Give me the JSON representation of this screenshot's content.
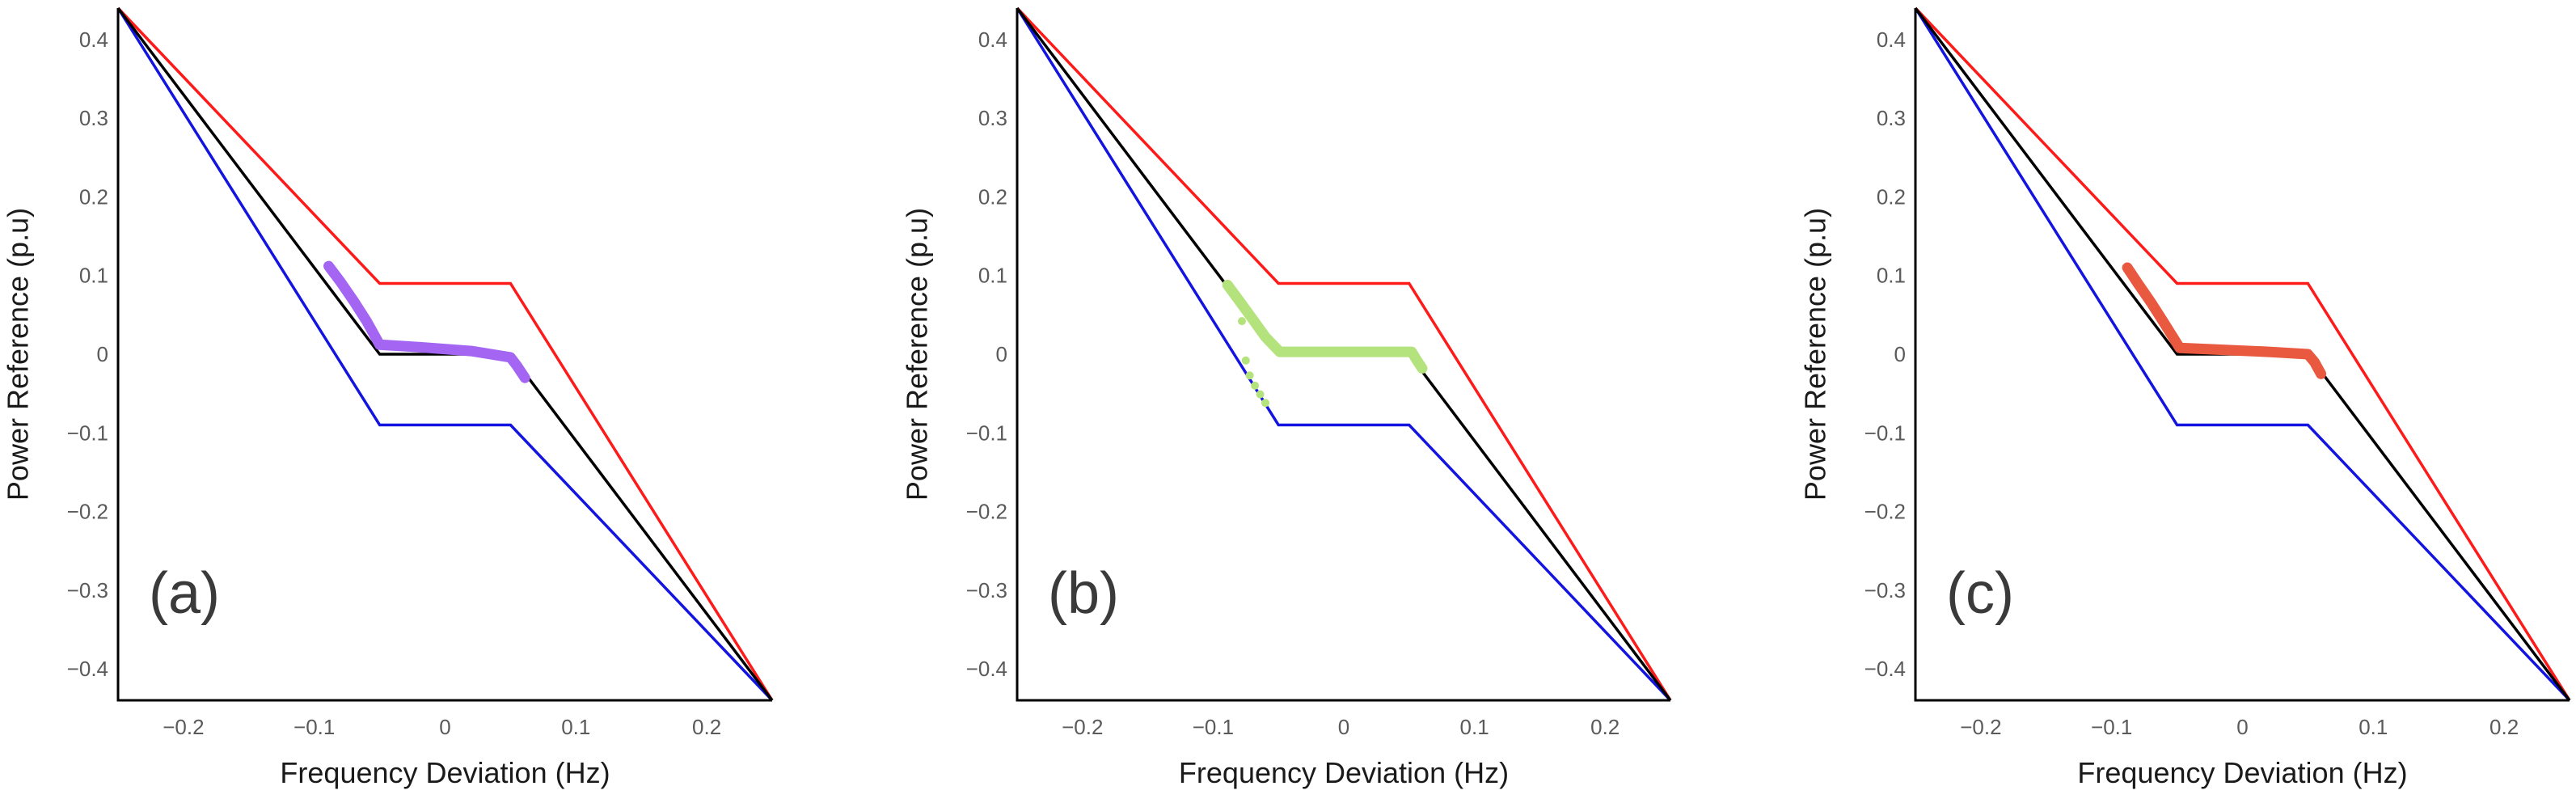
{
  "chart_data": [
    {
      "type": "line",
      "panel_label": "(a)",
      "xlabel": "Frequency Deviation (Hz)",
      "ylabel": "Power Reference (p.u)",
      "xlim": [
        -0.25,
        0.25
      ],
      "ylim": [
        -0.44,
        0.44
      ],
      "grid": false,
      "xticks": [
        -0.2,
        -0.1,
        0,
        0.1,
        0.2
      ],
      "xtick_labels": [
        "−0.2",
        "−0.1",
        "0",
        "0.1",
        "0.2"
      ],
      "yticks": [
        0.4,
        0.3,
        0.2,
        0.1,
        0,
        -0.1,
        -0.2,
        -0.3,
        -0.4
      ],
      "ytick_labels": [
        "0.4",
        "0.3",
        "0.2",
        "0.1",
        "0",
        "−0.1",
        "−0.2",
        "−0.3",
        "−0.4"
      ],
      "reference_lines": [
        {
          "color": "#1414e0",
          "x": [
            -0.25,
            -0.05,
            0.05,
            0.25
          ],
          "y": [
            0.44,
            -0.09,
            -0.09,
            -0.44
          ]
        },
        {
          "color": "#ff1a1a",
          "x": [
            -0.25,
            -0.05,
            0.05,
            0.25
          ],
          "y": [
            0.44,
            0.09,
            0.09,
            -0.44
          ]
        },
        {
          "color": "#000000",
          "x": [
            -0.25,
            -0.05,
            0.05,
            0.25
          ],
          "y": [
            0.44,
            0.0,
            0.0,
            -0.44
          ]
        }
      ],
      "measured": {
        "color": "#a466f2",
        "x": [
          -0.089,
          -0.08,
          -0.07,
          -0.06,
          -0.05,
          -0.02,
          0.02,
          0.05,
          0.055,
          0.061
        ],
        "y": [
          0.112,
          0.092,
          0.068,
          0.042,
          0.012,
          0.009,
          0.004,
          -0.004,
          -0.015,
          -0.03
        ]
      },
      "measured_points": {
        "color": "#a466f2",
        "x": [],
        "y": []
      }
    },
    {
      "type": "line",
      "panel_label": "(b)",
      "xlabel": "Frequency Deviation (Hz)",
      "ylabel": "Power Reference (p.u)",
      "xlim": [
        -0.25,
        0.25
      ],
      "ylim": [
        -0.44,
        0.44
      ],
      "grid": false,
      "xticks": [
        -0.2,
        -0.1,
        0,
        0.1,
        0.2
      ],
      "xtick_labels": [
        "−0.2",
        "−0.1",
        "0",
        "0.1",
        "0.2"
      ],
      "yticks": [
        0.4,
        0.3,
        0.2,
        0.1,
        0,
        -0.1,
        -0.2,
        -0.3,
        -0.4
      ],
      "ytick_labels": [
        "0.4",
        "0.3",
        "0.2",
        "0.1",
        "0",
        "−0.1",
        "−0.2",
        "−0.3",
        "−0.4"
      ],
      "reference_lines": [
        {
          "color": "#1414e0",
          "x": [
            -0.25,
            -0.05,
            0.05,
            0.25
          ],
          "y": [
            0.44,
            -0.09,
            -0.09,
            -0.44
          ]
        },
        {
          "color": "#ff1a1a",
          "x": [
            -0.25,
            -0.05,
            0.05,
            0.25
          ],
          "y": [
            0.44,
            0.09,
            0.09,
            -0.44
          ]
        },
        {
          "color": "#000000",
          "x": [
            -0.25,
            -0.05,
            0.05,
            0.25
          ],
          "y": [
            0.44,
            0.0,
            0.0,
            -0.44
          ]
        }
      ],
      "measured": {
        "color": "#b4e27c",
        "x": [
          -0.089,
          -0.08,
          -0.07,
          -0.06,
          -0.049,
          -0.02,
          0.02,
          0.052,
          0.056,
          0.06
        ],
        "y": [
          0.088,
          0.068,
          0.045,
          0.022,
          0.003,
          0.003,
          0.003,
          0.003,
          -0.008,
          -0.018
        ]
      },
      "measured_points": {
        "color": "#b4e27c",
        "x": [
          -0.078,
          -0.075,
          -0.072,
          -0.068,
          -0.064,
          -0.06
        ],
        "y": [
          0.042,
          -0.008,
          -0.027,
          -0.04,
          -0.051,
          -0.062
        ]
      }
    },
    {
      "type": "line",
      "panel_label": "(c)",
      "xlabel": "Frequency Deviation (Hz)",
      "ylabel": "Power Reference (p.u)",
      "xlim": [
        -0.25,
        0.25
      ],
      "ylim": [
        -0.44,
        0.44
      ],
      "grid": false,
      "xticks": [
        -0.2,
        -0.1,
        0,
        0.1,
        0.2
      ],
      "xtick_labels": [
        "−0.2",
        "−0.1",
        "0",
        "0.1",
        "0.2"
      ],
      "yticks": [
        0.4,
        0.3,
        0.2,
        0.1,
        0,
        -0.1,
        -0.2,
        -0.3,
        -0.4
      ],
      "ytick_labels": [
        "0.4",
        "0.3",
        "0.2",
        "0.1",
        "0",
        "−0.1",
        "−0.2",
        "−0.3",
        "−0.4"
      ],
      "reference_lines": [
        {
          "color": "#1414e0",
          "x": [
            -0.25,
            -0.05,
            0.05,
            0.25
          ],
          "y": [
            0.44,
            -0.09,
            -0.09,
            -0.44
          ]
        },
        {
          "color": "#ff1a1a",
          "x": [
            -0.25,
            -0.05,
            0.05,
            0.25
          ],
          "y": [
            0.44,
            0.09,
            0.09,
            -0.44
          ]
        },
        {
          "color": "#000000",
          "x": [
            -0.25,
            -0.05,
            0.05,
            0.25
          ],
          "y": [
            0.44,
            0.0,
            0.0,
            -0.44
          ]
        }
      ],
      "measured": {
        "color": "#e9593f",
        "x": [
          -0.088,
          -0.08,
          -0.07,
          -0.06,
          -0.048,
          -0.02,
          0.02,
          0.05,
          0.055,
          0.06
        ],
        "y": [
          0.11,
          0.09,
          0.066,
          0.04,
          0.008,
          0.006,
          0.003,
          0.0,
          -0.01,
          -0.025
        ]
      },
      "measured_points": {
        "color": "#e9593f",
        "x": [],
        "y": []
      }
    }
  ]
}
